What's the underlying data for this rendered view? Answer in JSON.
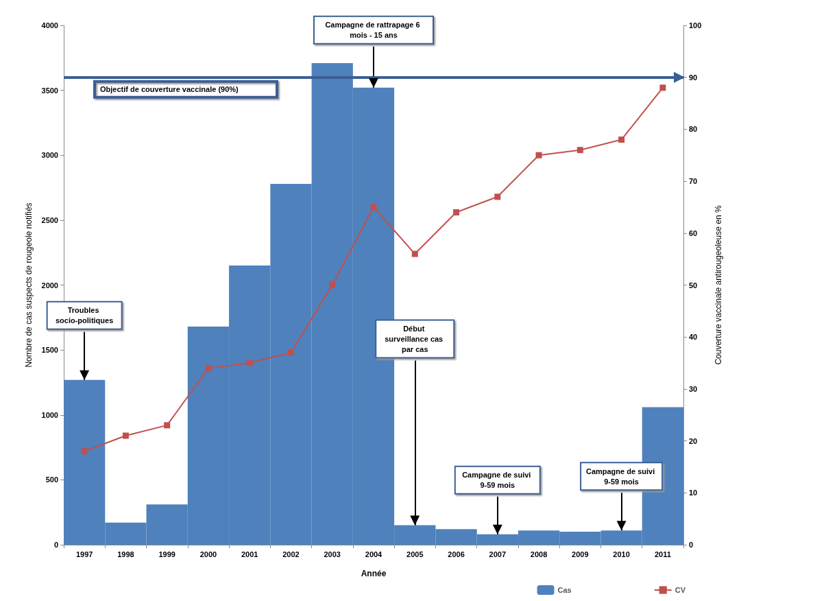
{
  "chart_data": {
    "type": "bar",
    "xlabel": "Année",
    "ylabel": "Nombre de cas suspects de rougeole notifiés",
    "y2label": "Couverture vaccinale antirougeoleuse en %",
    "categories": [
      "1997",
      "1998",
      "1999",
      "2000",
      "2001",
      "2002",
      "2003",
      "2004",
      "2005",
      "2006",
      "2007",
      "2008",
      "2009",
      "2010",
      "2011"
    ],
    "series": [
      {
        "name": "Cas",
        "color": "#4f81bd",
        "values": [
          1270,
          170,
          310,
          1680,
          2150,
          2780,
          3710,
          3520,
          150,
          120,
          80,
          110,
          100,
          110,
          1060
        ]
      },
      {
        "name": "CV",
        "type": "line",
        "axis": "y2",
        "color": "#c0504d",
        "marker": "square",
        "values": [
          18,
          21,
          23,
          34,
          35,
          37,
          50,
          65,
          56,
          64,
          67,
          75,
          76,
          78,
          88
        ]
      }
    ],
    "ylim": [
      0,
      4000
    ],
    "yticks": [
      0,
      500,
      1000,
      1500,
      2000,
      2500,
      3000,
      3500,
      4000
    ],
    "y2lim": [
      0,
      100
    ],
    "y2ticks": [
      0,
      10,
      20,
      30,
      40,
      50,
      60,
      70,
      80,
      90,
      100
    ],
    "ref_lines": [
      {
        "axis": "y2",
        "value": 90,
        "label": "Objectif de couverture vaccinale (90%)",
        "color": "#3b5f95"
      }
    ],
    "annotations": [
      {
        "text": "Troubles socio-politiques",
        "x": "1997",
        "y": 1270
      },
      {
        "text": "Campagne de rattrapage 6 mois - 15 ans",
        "x": "2004",
        "y": 3520
      },
      {
        "text": "Début surveillance cas par cas",
        "x": "2005",
        "y": 150
      },
      {
        "text": "Campagne de suivi 9-59 mois",
        "x": "2007",
        "y": 80
      },
      {
        "text": "Campagne de suivi 9-59 mois",
        "x": "2010",
        "y": 110
      }
    ],
    "grid": false,
    "legend": "bottom right"
  }
}
